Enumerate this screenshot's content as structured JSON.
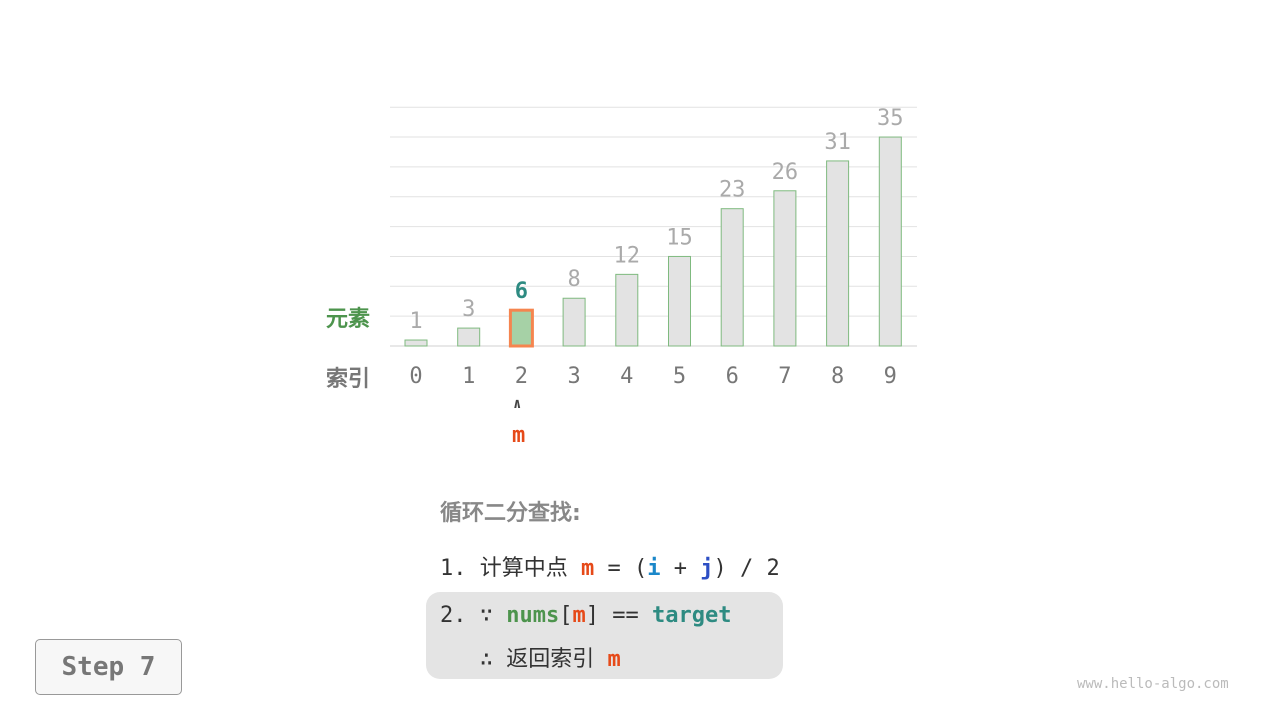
{
  "chart_data": {
    "type": "bar",
    "categories": [
      "0",
      "1",
      "2",
      "3",
      "4",
      "5",
      "6",
      "7",
      "8",
      "9"
    ],
    "values": [
      1,
      3,
      6,
      8,
      12,
      15,
      23,
      26,
      31,
      35
    ],
    "highlight_index": 2,
    "ylim": [
      0,
      40
    ],
    "grid": true
  },
  "labels": {
    "element": "元素",
    "index": "索引",
    "pointer_arrow": "∧",
    "pointer": "m"
  },
  "steps": {
    "title": "循环二分查找:",
    "line1": {
      "num": "1.",
      "text": "计算中点",
      "m": "m",
      "eq": "=",
      "lp": "(",
      "i": "i",
      "plus": "+",
      "j": "j",
      "rp": ")",
      "div": "/ 2"
    },
    "line2": {
      "num": "2.",
      "because": "∵",
      "nums": "nums",
      "lb": "[",
      "m": "m",
      "rb": "]",
      "eqeq": "==",
      "target": "target"
    },
    "line3": {
      "therefore": "∴",
      "text": "返回索引",
      "m": "m"
    }
  },
  "step_label": "Step 7",
  "watermark": "www.hello-algo.com",
  "colors": {
    "bar": "#e3e3e3",
    "bar_border": "#7fba7f",
    "highlight_fill": "#a6d1a6",
    "highlight_border": "#f5854f",
    "m": "#e64a19",
    "i": "#1b87c9",
    "j": "#2d4fc4",
    "green": "#4d944d",
    "teal": "#2e8b82"
  }
}
